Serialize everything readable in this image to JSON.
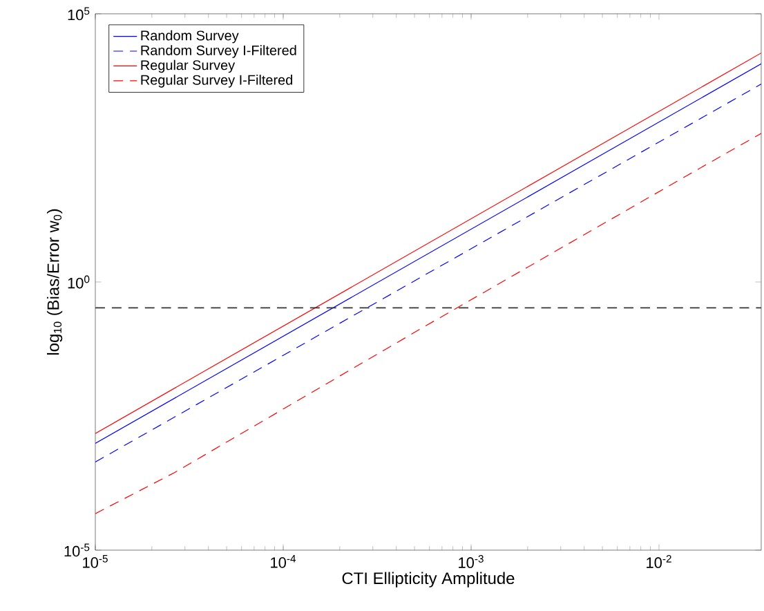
{
  "chart_data": {
    "type": "line",
    "xlabel": "CTI Ellipticity Amplitude",
    "ylabel": "log$_{10}$ (Bias/Error w$_{0}$)",
    "log": "xy",
    "xlim": [
      1e-05,
      0.035
    ],
    "ylim": [
      1e-05,
      100000
    ],
    "xticks": [
      {
        "value": 1e-05,
        "label": "10$^{-5}$"
      },
      {
        "value": 0.0001,
        "label": "10$^{-4}$"
      },
      {
        "value": 0.001,
        "label": "10$^{-3}$"
      },
      {
        "value": 0.01,
        "label": "10$^{-2}$"
      }
    ],
    "yticks": [
      {
        "value": 1e-05,
        "label": "10$^{-5}$"
      },
      {
        "value": 1,
        "label": "10$^{0}$"
      },
      {
        "value": 100000,
        "label": "10$^{5}$"
      }
    ],
    "grid": false,
    "legend": "top left",
    "marker": "none",
    "series": [
      {
        "name": "Random Survey",
        "color": "#0000ff",
        "line_style": "solid",
        "x": [
          1e-05,
          0.035
        ],
        "values": [
          0.00098,
          11700
        ]
      },
      {
        "name": "Random Survey I-Filtered",
        "color": "#0000ff",
        "line_style": "dashed",
        "x": [
          1e-05,
          0.035
        ],
        "values": [
          0.00044,
          4900
        ]
      },
      {
        "name": "Regular Survey",
        "color": "#ff0000",
        "line_style": "solid",
        "x": [
          1e-05,
          0.035
        ],
        "values": [
          0.0015,
          18600
        ]
      },
      {
        "name": "Regular Survey I-Filtered",
        "color": "#ff0000",
        "line_style": "dashed",
        "x": [
          1e-05,
          2.64e-05,
          0.00056,
          0.0142,
          0.035
        ],
        "values": [
          4.8e-05,
          0.00028,
          0.145,
          98,
          590
        ]
      }
    ],
    "ref_lines": [
      {
        "axis": "y",
        "value": 0.33,
        "color": "#333333",
        "line_style": "dashed"
      }
    ]
  }
}
